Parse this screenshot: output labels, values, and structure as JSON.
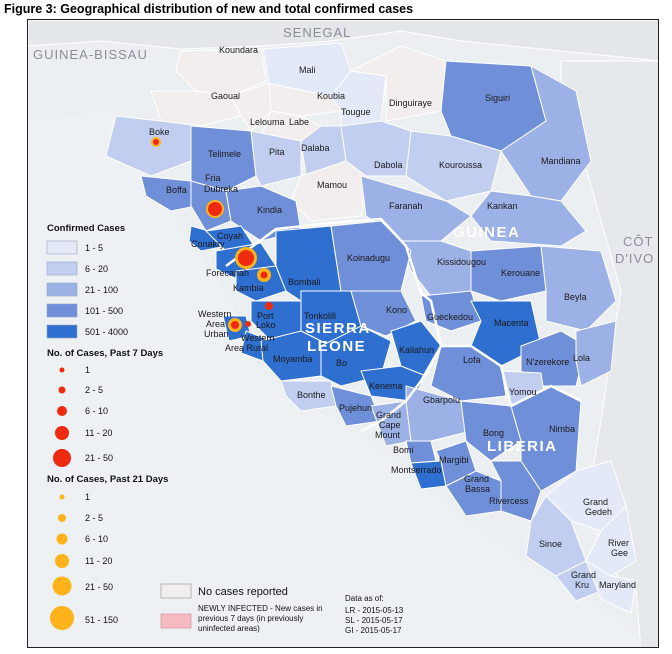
{
  "figure_title": "Figure 3: Geographical distribution of new and total confirmed cases",
  "countries": {
    "senegal": "SENEGAL",
    "guinea_bissau": "GUINEA-BISSAU",
    "guinea": "GUINEA",
    "sierra_leone_1": "SIERRA",
    "sierra_leone_2": "LEONE",
    "liberia": "LIBERIA",
    "cote_divoire_1": "CÔT",
    "cote_divoire_2": "D'IVO"
  },
  "districts": {
    "koundara": "Koundara",
    "mali": "Mali",
    "gaoual": "Gaoual",
    "koubia": "Koubia",
    "dinguiraye": "Dinguiraye",
    "tougue": "Tougue",
    "lelouma": "Lelouma",
    "labe": "Labe",
    "siguiri": "Siguiri",
    "boke": "Boke",
    "telimele": "Telimele",
    "pita": "Pita",
    "dalaba": "Dalaba",
    "dabola": "Dabola",
    "kouroussa": "Kouroussa",
    "mandiana": "Mandiana",
    "fria": "Fria",
    "dubreka": "Dubreka",
    "boffa": "Boffa",
    "mamou": "Mamou",
    "faranah": "Faranah",
    "kankan": "Kankan",
    "kindia": "Kindia",
    "coyah": "Coyah",
    "conakry": "Conakry",
    "koinadugu": "Koinadugu",
    "kissidougou": "Kissidougou",
    "kerouane": "Kerouane",
    "forecariah": "Forecariah",
    "kambia": "Kambia",
    "bombali": "Bombali",
    "beyla": "Beyla",
    "port_loko_1": "Port",
    "port_loko_2": "Loko",
    "kono": "Kono",
    "gueckedou": "Gueckedou",
    "macenta": "Macenta",
    "western_urban_1": "Western",
    "western_urban_2": "Area",
    "western_urban_3": "Urban",
    "western_rural_1": "Western",
    "western_rural_2": "Area Rural",
    "tonkolili": "Tonkolili",
    "kailahun": "Kailahun",
    "lofa": "Lofa",
    "moyamba": "Moyamba",
    "bo": "Bo",
    "nzerekore": "N'zerekore",
    "lola": "Lola",
    "kenema": "Kenema",
    "yomou": "Yomou",
    "bonthe": "Bonthe",
    "pujehun": "Pujehun",
    "gbarpolu": "Gbarpolu",
    "grand_cape_1": "Grand",
    "grand_cape_2": "Cape",
    "grand_cape_3": "Mount",
    "bong": "Bong",
    "nimba": "Nimba",
    "bomi": "Bomi",
    "margibi": "Margibi",
    "montserrado": "Montserrado",
    "grand_bassa_1": "Grand",
    "grand_bassa_2": "Bassa",
    "rivercess": "Rivercess",
    "grand_gedeh_1": "Grand",
    "grand_gedeh_2": "Gedeh",
    "sinoe": "Sinoe",
    "river_gee_1": "River",
    "river_gee_2": "Gee",
    "grand_kru_1": "Grand",
    "grand_kru_2": "Kru",
    "maryland": "Maryland"
  },
  "legend": {
    "confirmed_title": "Confirmed Cases",
    "confirmed_classes": [
      {
        "label": "1 - 5",
        "color": "#e4e9f8"
      },
      {
        "label": "6 - 20",
        "color": "#c1cef0"
      },
      {
        "label": "21 - 100",
        "color": "#9cb1e6"
      },
      {
        "label": "101 - 500",
        "color": "#6f8fd9"
      },
      {
        "label": "501 - 4000",
        "color": "#2f6fd0"
      }
    ],
    "past7_title": "No. of Cases, Past 7 Days",
    "past7_classes": [
      "1",
      "2 - 5",
      "6 - 10",
      "11 - 20",
      "21 - 50"
    ],
    "past21_title": "No. of Cases, Past 21 Days",
    "past21_classes": [
      "1",
      "2 - 5",
      "6 - 10",
      "11 - 20",
      "21 - 50",
      "51 - 150"
    ],
    "no_cases": "No cases reported",
    "newly_infected_1": "NEWLY INFECTED - New cases in",
    "newly_infected_2": "previous 7 days (in previously",
    "newly_infected_3": "uninfected areas)",
    "data_as_of": "Data as of:",
    "date_lr": "LR - 2015-05-13",
    "date_sl": "SL - 2015-05-17",
    "date_gi": "GI - 2015-05-17"
  },
  "colors": {
    "none": "#f2eeee",
    "c1": "#e4e9f8",
    "c2": "#c1cef0",
    "c3": "#9cb1e6",
    "c4": "#6f8fd9",
    "c5": "#2f6fd0",
    "bubble21": "#ffb31a",
    "bubble7": "#ee2a10",
    "newly_infected": "#f7b9c2"
  }
}
